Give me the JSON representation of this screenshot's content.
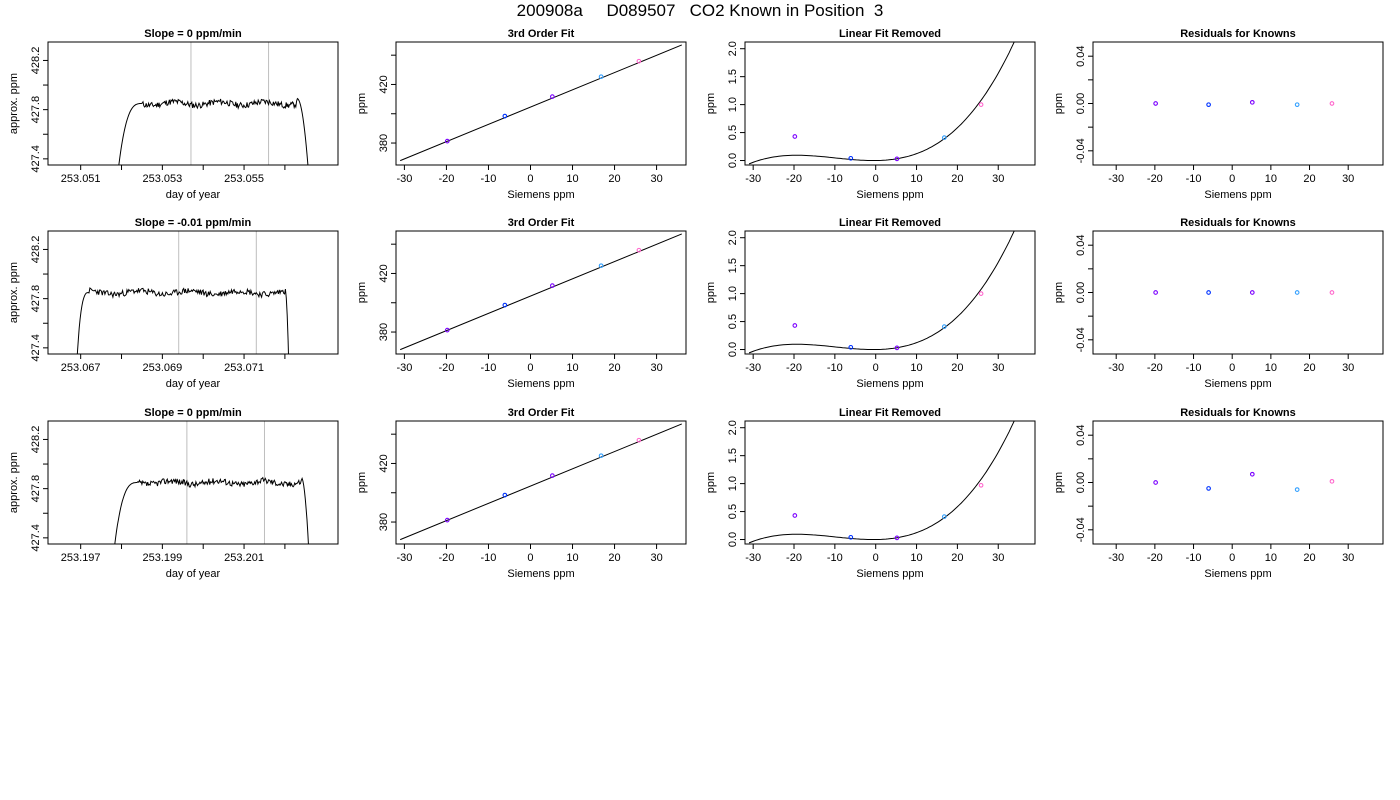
{
  "page_title": "200908a     D089507   CO2 Known in Position  3",
  "colors": {
    "axis": "#000000",
    "trace": "#000000",
    "vline": "#bebebe",
    "point_purple": "#7b00ff",
    "point_blue": "#0033ff",
    "point_lightblue": "#33a0ff",
    "point_pink": "#ff66cc"
  },
  "chart_data": [
    {
      "type": "line",
      "row": 0,
      "col": 0,
      "title": "Slope =  0  ppm/min",
      "xlabel": "day of year",
      "ylabel": "approx. ppm",
      "xlim": [
        253.0502,
        253.0573
      ],
      "ylim": [
        427.35,
        428.35
      ],
      "xticks": [
        253.051,
        253.052,
        253.053,
        253.054,
        253.055,
        253.056
      ],
      "xtick_labels": [
        "253.051",
        "",
        "253.053",
        "",
        "253.055",
        ""
      ],
      "yticks": [
        427.4,
        427.6,
        427.8,
        428.0,
        428.2
      ],
      "ytick_labels": [
        "427.4",
        "",
        "427.8",
        "",
        "428.2"
      ],
      "vlines": [
        253.0537,
        253.0556
      ],
      "trace": {
        "x_start": 253.0519,
        "x_end": 253.0566,
        "plateau_start": 253.0525,
        "plateau_end": 253.0563,
        "level": 427.85,
        "seed": 11
      }
    },
    {
      "type": "scatter",
      "row": 0,
      "col": 1,
      "title": "3rd Order Fit",
      "xlabel": "Siemens ppm",
      "ylabel": "ppm",
      "xlim": [
        -32,
        37
      ],
      "ylim": [
        365,
        449
      ],
      "xticks": [
        -30,
        -20,
        -10,
        0,
        10,
        20,
        30
      ],
      "xtick_labels": [
        "-30",
        "-20",
        "-10",
        "0",
        "10",
        "20",
        "30"
      ],
      "yticks": [
        380,
        400,
        420,
        440
      ],
      "ytick_labels": [
        "380",
        "",
        "420",
        ""
      ],
      "line": {
        "x": [
          -31,
          36
        ],
        "y": [
          368.0,
          447.0
        ]
      },
      "points": [
        {
          "x": -19.8,
          "y": 381.3
        },
        {
          "x": -6.1,
          "y": 398.4
        },
        {
          "x": 5.2,
          "y": 411.7
        },
        {
          "x": 16.8,
          "y": 425.3
        },
        {
          "x": 25.8,
          "y": 435.9
        }
      ]
    },
    {
      "type": "scatter",
      "row": 0,
      "col": 2,
      "title": "Linear Fit Removed",
      "xlabel": "Siemens ppm",
      "ylabel": "ppm",
      "xlim": [
        -32,
        39
      ],
      "ylim": [
        -0.08,
        2.12
      ],
      "xticks": [
        -30,
        -20,
        -10,
        0,
        10,
        20,
        30
      ],
      "xtick_labels": [
        "-30",
        "-20",
        "-10",
        "0",
        "10",
        "20",
        "30"
      ],
      "yticks": [
        0,
        0.5,
        1.0,
        1.5,
        2.0
      ],
      "ytick_labels": [
        "0.0",
        "0.5",
        "1.0",
        "1.5",
        "2.0"
      ],
      "curve": {
        "x_start": -31,
        "x_end": 36,
        "coef": [
          0,
          0.0009,
          0.00085,
          2.85e-05
        ]
      },
      "points": [
        {
          "x": -19.8,
          "y": 0.43
        },
        {
          "x": -6.1,
          "y": 0.04
        },
        {
          "x": 5.2,
          "y": 0.03
        },
        {
          "x": 16.8,
          "y": 0.41
        },
        {
          "x": 25.8,
          "y": 1.0
        }
      ]
    },
    {
      "type": "scatter",
      "row": 0,
      "col": 3,
      "title": "Residuals for Knowns",
      "xlabel": "Siemens ppm",
      "ylabel": "ppm",
      "xlim": [
        -36,
        39
      ],
      "ylim": [
        -0.052,
        0.052
      ],
      "xticks": [
        -30,
        -20,
        -10,
        0,
        10,
        20,
        30
      ],
      "xtick_labels": [
        "-30",
        "-20",
        "-10",
        "0",
        "10",
        "20",
        "30"
      ],
      "yticks": [
        -0.04,
        -0.02,
        0,
        0.02,
        0.04
      ],
      "ytick_labels": [
        "-0.04",
        "",
        "0.00",
        "",
        "0.04"
      ],
      "points": [
        {
          "x": -19.8,
          "y": 0.0
        },
        {
          "x": -6.1,
          "y": -0.001
        },
        {
          "x": 5.2,
          "y": 0.001
        },
        {
          "x": 16.8,
          "y": -0.001
        },
        {
          "x": 25.8,
          "y": 0.0
        }
      ]
    },
    {
      "type": "line",
      "row": 1,
      "col": 0,
      "title": "Slope =  -0.01  ppm/min",
      "xlabel": "day of year",
      "ylabel": "approx. ppm",
      "xlim": [
        253.0662,
        253.0733
      ],
      "ylim": [
        427.35,
        428.35
      ],
      "xticks": [
        253.067,
        253.068,
        253.069,
        253.07,
        253.071,
        253.072
      ],
      "xtick_labels": [
        "253.067",
        "",
        "253.069",
        "",
        "253.071",
        ""
      ],
      "yticks": [
        427.4,
        427.6,
        427.8,
        428.0,
        428.2
      ],
      "ytick_labels": [
        "427.4",
        "",
        "427.8",
        "",
        "428.2"
      ],
      "vlines": [
        253.0694,
        253.0713
      ],
      "trace": {
        "x_start": 253.0669,
        "x_end": 253.0721,
        "plateau_start": 253.0672,
        "plateau_end": 253.072,
        "level": 427.85,
        "seed": 23
      }
    },
    {
      "type": "scatter",
      "row": 1,
      "col": 1,
      "title": "3rd Order Fit",
      "xlabel": "Siemens ppm",
      "ylabel": "ppm",
      "xlim": [
        -32,
        37
      ],
      "ylim": [
        365,
        449
      ],
      "xticks": [
        -30,
        -20,
        -10,
        0,
        10,
        20,
        30
      ],
      "xtick_labels": [
        "-30",
        "-20",
        "-10",
        "0",
        "10",
        "20",
        "30"
      ],
      "yticks": [
        380,
        400,
        420,
        440
      ],
      "ytick_labels": [
        "380",
        "",
        "420",
        ""
      ],
      "line": {
        "x": [
          -31,
          36
        ],
        "y": [
          368.0,
          447.0
        ]
      },
      "points": [
        {
          "x": -19.8,
          "y": 381.3
        },
        {
          "x": -6.1,
          "y": 398.4
        },
        {
          "x": 5.2,
          "y": 411.7
        },
        {
          "x": 16.8,
          "y": 425.3
        },
        {
          "x": 25.8,
          "y": 435.9
        }
      ]
    },
    {
      "type": "scatter",
      "row": 1,
      "col": 2,
      "title": "Linear Fit Removed",
      "xlabel": "Siemens ppm",
      "ylabel": "ppm",
      "xlim": [
        -32,
        39
      ],
      "ylim": [
        -0.08,
        2.12
      ],
      "xticks": [
        -30,
        -20,
        -10,
        0,
        10,
        20,
        30
      ],
      "xtick_labels": [
        "-30",
        "-20",
        "-10",
        "0",
        "10",
        "20",
        "30"
      ],
      "yticks": [
        0,
        0.5,
        1.0,
        1.5,
        2.0
      ],
      "ytick_labels": [
        "0.0",
        "0.5",
        "1.0",
        "1.5",
        "2.0"
      ],
      "curve": {
        "x_start": -31,
        "x_end": 36,
        "coef": [
          0,
          0.0009,
          0.00085,
          2.85e-05
        ]
      },
      "points": [
        {
          "x": -19.8,
          "y": 0.43
        },
        {
          "x": -6.1,
          "y": 0.04
        },
        {
          "x": 5.2,
          "y": 0.03
        },
        {
          "x": 16.8,
          "y": 0.41
        },
        {
          "x": 25.8,
          "y": 1.0
        }
      ]
    },
    {
      "type": "scatter",
      "row": 1,
      "col": 3,
      "title": "Residuals for Knowns",
      "xlabel": "Siemens ppm",
      "ylabel": "ppm",
      "xlim": [
        -36,
        39
      ],
      "ylim": [
        -0.052,
        0.052
      ],
      "xticks": [
        -30,
        -20,
        -10,
        0,
        10,
        20,
        30
      ],
      "xtick_labels": [
        "-30",
        "-20",
        "-10",
        "0",
        "10",
        "20",
        "30"
      ],
      "yticks": [
        -0.04,
        -0.02,
        0,
        0.02,
        0.04
      ],
      "ytick_labels": [
        "-0.04",
        "",
        "0.00",
        "",
        "0.04"
      ],
      "points": [
        {
          "x": -19.8,
          "y": 0.0
        },
        {
          "x": -6.1,
          "y": 0.0
        },
        {
          "x": 5.2,
          "y": 0.0
        },
        {
          "x": 16.8,
          "y": 0.0
        },
        {
          "x": 25.8,
          "y": 0.0
        }
      ]
    },
    {
      "type": "line",
      "row": 2,
      "col": 0,
      "title": "Slope =  0  ppm/min",
      "xlabel": "day of year",
      "ylabel": "approx. ppm",
      "xlim": [
        253.1962,
        253.2033
      ],
      "ylim": [
        427.35,
        428.35
      ],
      "xticks": [
        253.197,
        253.198,
        253.199,
        253.2,
        253.201,
        253.202
      ],
      "xtick_labels": [
        "253.197",
        "",
        "253.199",
        "",
        "253.201",
        ""
      ],
      "yticks": [
        427.4,
        427.6,
        427.8,
        428.0,
        428.2
      ],
      "ytick_labels": [
        "427.4",
        "",
        "427.8",
        "",
        "428.2"
      ],
      "vlines": [
        253.1996,
        253.2015
      ],
      "trace": {
        "x_start": 253.1978,
        "x_end": 253.2026,
        "plateau_start": 253.1984,
        "plateau_end": 253.2024,
        "level": 427.85,
        "seed": 37
      }
    },
    {
      "type": "scatter",
      "row": 2,
      "col": 1,
      "title": "3rd Order Fit",
      "xlabel": "Siemens ppm",
      "ylabel": "ppm",
      "xlim": [
        -32,
        37
      ],
      "ylim": [
        365,
        449
      ],
      "xticks": [
        -30,
        -20,
        -10,
        0,
        10,
        20,
        30
      ],
      "xtick_labels": [
        "-30",
        "-20",
        "-10",
        "0",
        "10",
        "20",
        "30"
      ],
      "yticks": [
        380,
        400,
        420,
        440
      ],
      "ytick_labels": [
        "380",
        "",
        "420",
        ""
      ],
      "line": {
        "x": [
          -31,
          36
        ],
        "y": [
          368.0,
          447.0
        ]
      },
      "points": [
        {
          "x": -19.8,
          "y": 381.3
        },
        {
          "x": -6.1,
          "y": 398.4
        },
        {
          "x": 5.2,
          "y": 411.7
        },
        {
          "x": 16.8,
          "y": 425.3
        },
        {
          "x": 25.8,
          "y": 435.9
        }
      ]
    },
    {
      "type": "scatter",
      "row": 2,
      "col": 2,
      "title": "Linear Fit Removed",
      "xlabel": "Siemens ppm",
      "ylabel": "ppm",
      "xlim": [
        -32,
        39
      ],
      "ylim": [
        -0.08,
        2.12
      ],
      "xticks": [
        -30,
        -20,
        -10,
        0,
        10,
        20,
        30
      ],
      "xtick_labels": [
        "-30",
        "-20",
        "-10",
        "0",
        "10",
        "20",
        "30"
      ],
      "yticks": [
        0,
        0.5,
        1.0,
        1.5,
        2.0
      ],
      "ytick_labels": [
        "0.0",
        "0.5",
        "1.0",
        "1.5",
        "2.0"
      ],
      "curve": {
        "x_start": -31,
        "x_end": 36,
        "coef": [
          0,
          0.0009,
          0.00085,
          2.85e-05
        ]
      },
      "points": [
        {
          "x": -19.8,
          "y": 0.43
        },
        {
          "x": -6.1,
          "y": 0.04
        },
        {
          "x": 5.2,
          "y": 0.03
        },
        {
          "x": 16.8,
          "y": 0.41
        },
        {
          "x": 25.8,
          "y": 0.97
        }
      ]
    },
    {
      "type": "scatter",
      "row": 2,
      "col": 3,
      "title": "Residuals for Knowns",
      "xlabel": "Siemens ppm",
      "ylabel": "ppm",
      "xlim": [
        -36,
        39
      ],
      "ylim": [
        -0.052,
        0.052
      ],
      "xticks": [
        -30,
        -20,
        -10,
        0,
        10,
        20,
        30
      ],
      "xtick_labels": [
        "-30",
        "-20",
        "-10",
        "0",
        "10",
        "20",
        "30"
      ],
      "yticks": [
        -0.04,
        -0.02,
        0,
        0.02,
        0.04
      ],
      "ytick_labels": [
        "-0.04",
        "",
        "0.00",
        "",
        "0.04"
      ],
      "points": [
        {
          "x": -19.8,
          "y": 0.0
        },
        {
          "x": -6.1,
          "y": -0.005
        },
        {
          "x": 5.2,
          "y": 0.007
        },
        {
          "x": 16.8,
          "y": -0.006
        },
        {
          "x": 25.8,
          "y": 0.001
        }
      ]
    }
  ]
}
